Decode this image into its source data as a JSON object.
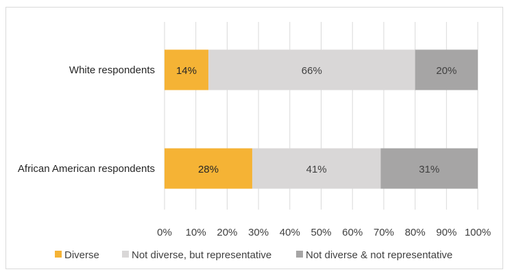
{
  "chart_data": {
    "type": "bar",
    "orientation": "horizontal",
    "stacked": true,
    "title": "",
    "xlabel": "",
    "ylabel": "",
    "xlim": [
      0,
      100
    ],
    "tick_step": 10,
    "tick_suffix": "%",
    "grid": "vertical",
    "legend_position": "bottom",
    "categories": [
      "White respondents",
      "African American respondents"
    ],
    "series": [
      {
        "name": "Diverse",
        "color": "#f5b335",
        "label_color": "#262626",
        "values": [
          14,
          28
        ]
      },
      {
        "name": "Not diverse, but representative",
        "color": "#d9d7d7",
        "label_color": "#404040",
        "values": [
          66,
          41
        ]
      },
      {
        "name": "Not diverse & not representative",
        "color": "#a6a5a5",
        "label_color": "#404040",
        "values": [
          20,
          31
        ]
      }
    ],
    "data_labels": [
      [
        "14%",
        "66%",
        "20%"
      ],
      [
        "28%",
        "41%",
        "31%"
      ]
    ]
  }
}
